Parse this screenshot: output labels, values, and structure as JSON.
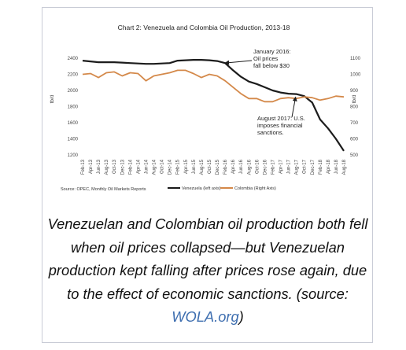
{
  "chart_data": {
    "type": "line",
    "title": "Chart 2: Venezuela and Colombia Oil Production, 2013-18",
    "categories": [
      "Feb-13",
      "Apr-13",
      "Jun-13",
      "Aug-13",
      "Oct-13",
      "Dec-13",
      "Feb-14",
      "Apr-14",
      "Jun-14",
      "Aug-14",
      "Oct-14",
      "Dec-14",
      "Feb-15",
      "Apr-15",
      "Jun-15",
      "Aug-15",
      "Oct-15",
      "Dec-15",
      "Feb-16",
      "Apr-16",
      "Jun-16",
      "Aug-16",
      "Oct-16",
      "Dec-16",
      "Feb-17",
      "Apr-17",
      "Jun-17",
      "Aug-17",
      "Oct-17",
      "Dec-17",
      "Feb-18",
      "Apr-18",
      "Jun-18",
      "Aug-18"
    ],
    "ylabel": "tb/d",
    "y2label": "tb/d",
    "ylim": [
      1200,
      2400
    ],
    "y2lim": [
      500,
      1100
    ],
    "yticks": [
      1200,
      1400,
      1600,
      1800,
      2000,
      2200,
      2400
    ],
    "y2ticks": [
      500,
      600,
      700,
      800,
      900,
      1000,
      1100
    ],
    "series": [
      {
        "name": "Venezuela (left axis)",
        "axis": "left",
        "color": "#1c1c1c",
        "values": [
          2370,
          2360,
          2350,
          2350,
          2350,
          2345,
          2340,
          2335,
          2330,
          2330,
          2335,
          2340,
          2370,
          2375,
          2380,
          2380,
          2375,
          2365,
          2340,
          2250,
          2170,
          2110,
          2080,
          2040,
          2000,
          1975,
          1960,
          1955,
          1930,
          1850,
          1640,
          1530,
          1400,
          1250
        ]
      },
      {
        "name": "Colombia (Right Axis)",
        "axis": "right",
        "color": "#d4894a",
        "values": [
          1000,
          1005,
          980,
          1010,
          1015,
          990,
          1010,
          1005,
          960,
          990,
          1000,
          1010,
          1025,
          1025,
          1005,
          980,
          1000,
          990,
          960,
          920,
          880,
          850,
          850,
          830,
          830,
          850,
          855,
          850,
          860,
          855,
          840,
          850,
          865,
          860
        ]
      }
    ],
    "annotations": [
      {
        "lines": [
          "January 2016:",
          "Oil prices",
          "fall below $30"
        ],
        "x": "Jan-16",
        "y": 2350
      },
      {
        "lines": [
          "August 2017:  U.S.",
          "imposes financial",
          "sanctions."
        ],
        "x": "Aug-17",
        "y": 1955
      }
    ],
    "source": "Source: OPEC, Monthly Oil Markets Reports",
    "legend_position": "bottom"
  },
  "caption": {
    "text": "Venezuelan and Colombian oil production both fell when oil prices collapsed—but Venezuelan production kept falling after prices rose again, due to the effect of economic sanctions. (source: ",
    "link_text": "WOLA.org",
    "suffix": ")"
  }
}
